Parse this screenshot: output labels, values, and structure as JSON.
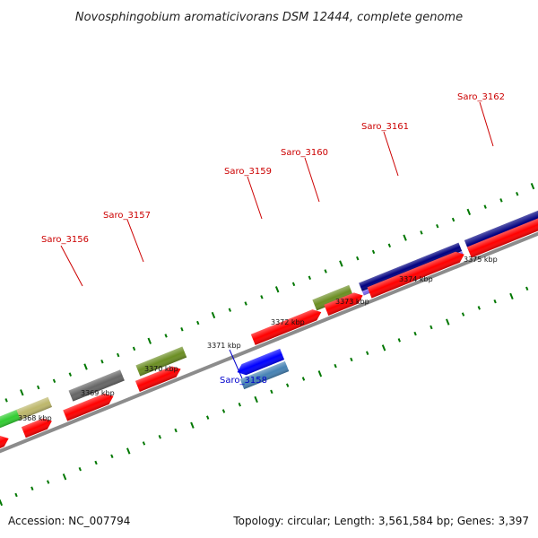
{
  "title": "Novosphingobium aromaticivorans DSM 12444, complete genome",
  "footer": {
    "accession": "Accession: NC_007794",
    "topology": "Topology: circular; Length: 3,561,584 bp; Genes: 3,397"
  },
  "colors": {
    "red_gene": "#ff0000",
    "olive_gene": "#6b8e23",
    "gray_gene": "#666666",
    "tan_gene": "#bdb76b",
    "green_gene": "#32cd32",
    "navy_gene": "#000080",
    "slate_gene": "#7b68ee",
    "blue_gene": "#0000ff",
    "steel_gene": "#4682b4",
    "backbone": "#8c8c8c",
    "tick": "#007700",
    "label_top": "#cc0000",
    "label_bottom": "#0000cc"
  },
  "gene_labels": [
    {
      "text": "Saro_3156",
      "strand": "top"
    },
    {
      "text": "Saro_3157",
      "strand": "top"
    },
    {
      "text": "Saro_3158",
      "strand": "bottom"
    },
    {
      "text": "Saro_3159",
      "strand": "top"
    },
    {
      "text": "Saro_3160",
      "strand": "top"
    },
    {
      "text": "Saro_3161",
      "strand": "top"
    },
    {
      "text": "Saro_3162",
      "strand": "top"
    }
  ],
  "kbp_labels": [
    "3368 kbp",
    "3369 kbp",
    "3370 kbp",
    "3371 kbp",
    "3372 kbp",
    "3373 kbp",
    "3374 kbp",
    "3375 kbp"
  ]
}
